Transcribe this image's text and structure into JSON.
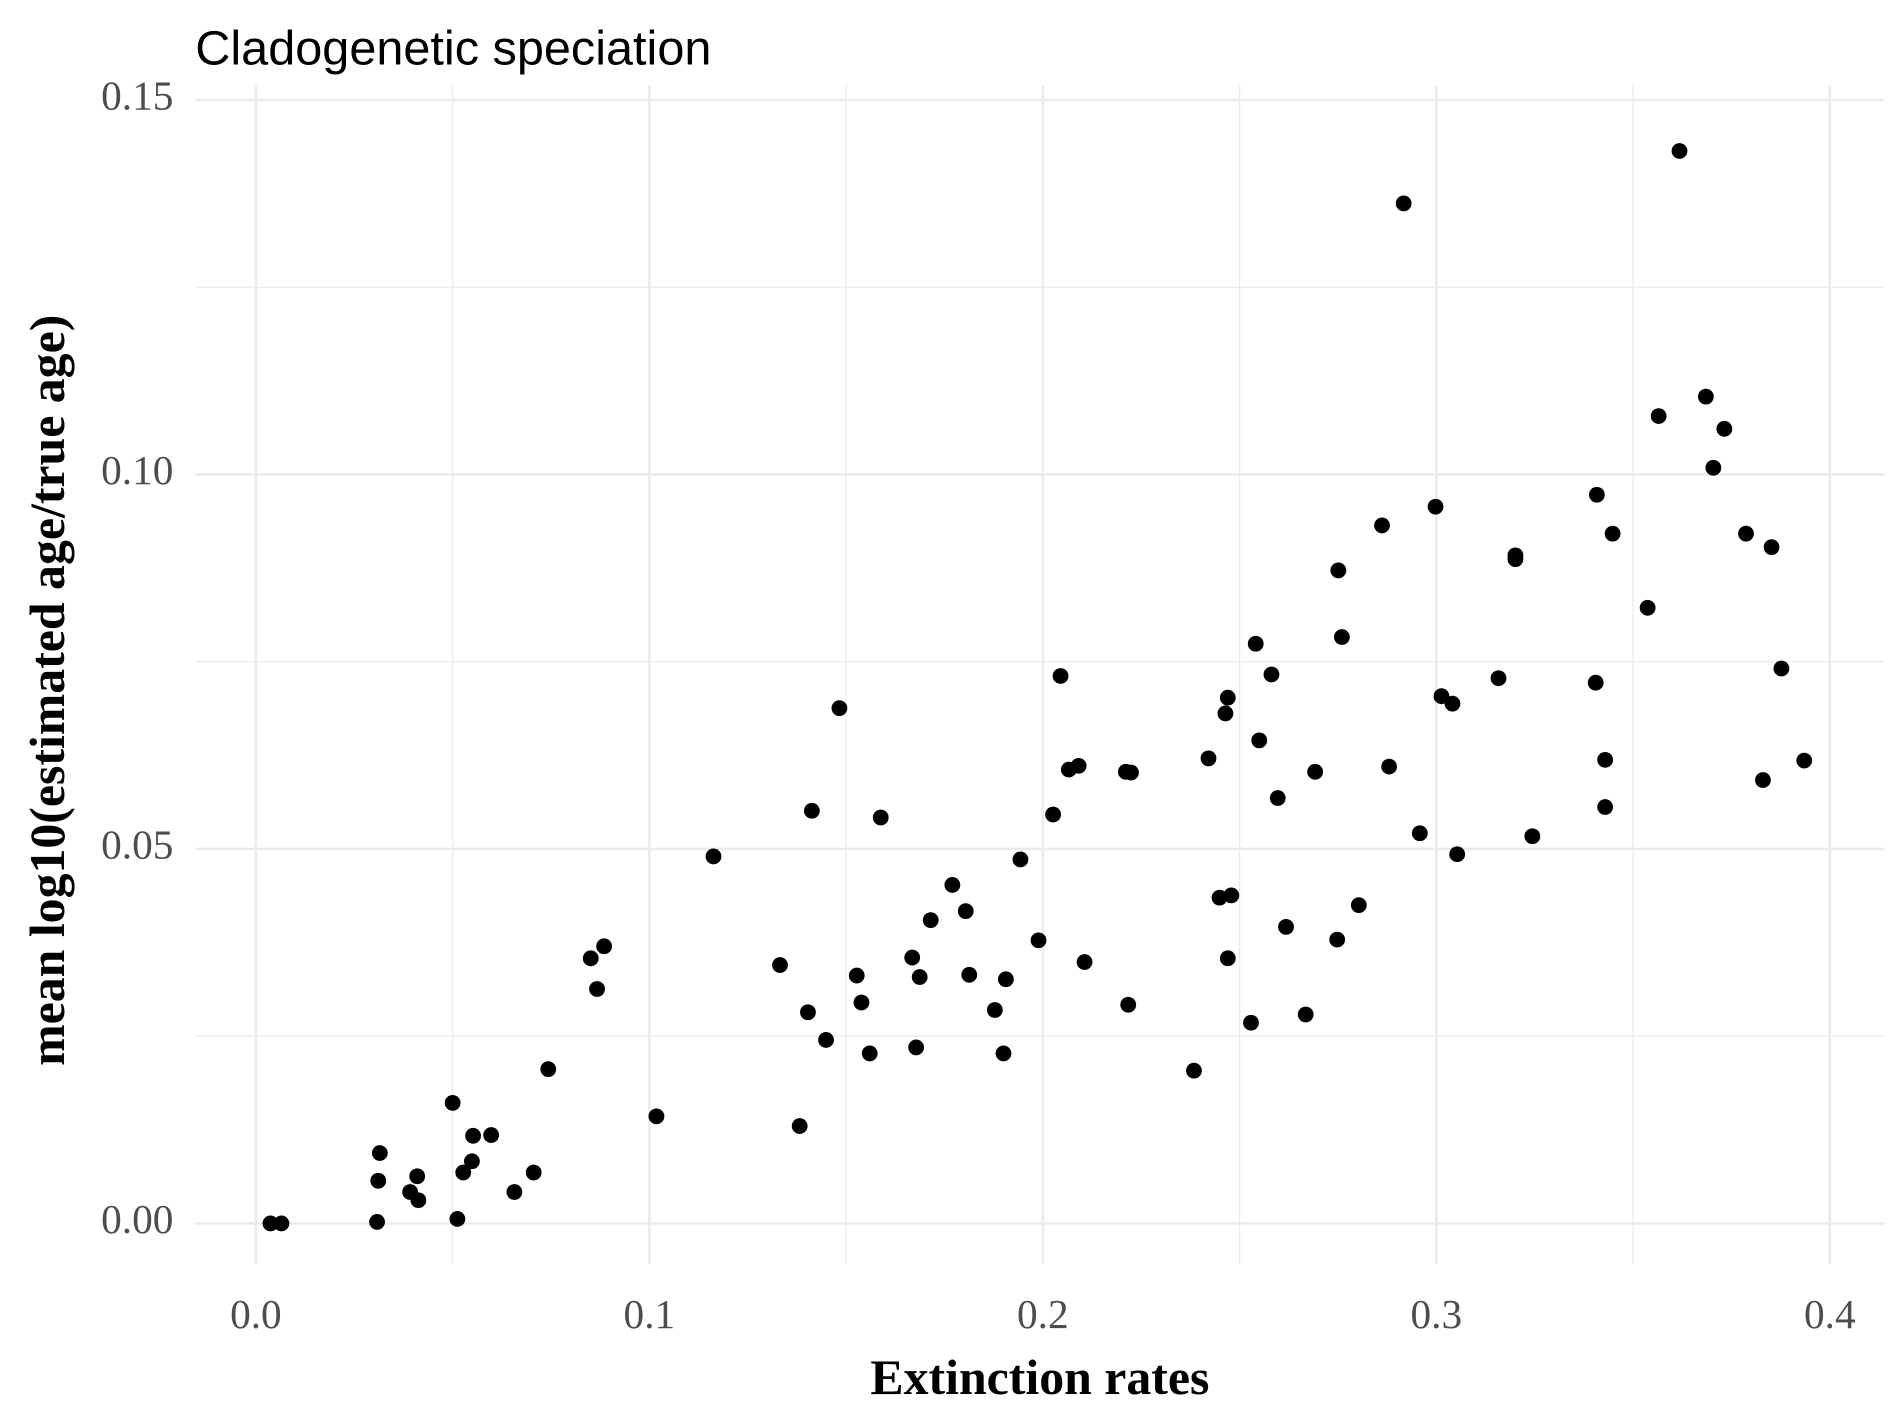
{
  "chart_data": {
    "type": "scatter",
    "title": "Cladogenetic speciation",
    "x_label": "Extinction rates",
    "y_label": "mean log10(estimated age/true age)",
    "color": "#000000",
    "grid": true,
    "xlim": [
      -0.0154,
      0.4139
    ],
    "ylim": [
      -0.0054,
      0.152
    ],
    "xticks": [
      {
        "value": 0,
        "label": "0.0"
      },
      {
        "value": 0.1,
        "label": "0.1"
      },
      {
        "value": 0.2,
        "label": "0.2"
      },
      {
        "value": 0.3,
        "label": "0.3"
      },
      {
        "value": 0.4,
        "label": "0.4"
      }
    ],
    "yticks": [
      {
        "value": 0,
        "label": "0.00"
      },
      {
        "value": 0.05,
        "label": "0.05"
      },
      {
        "value": 0.1,
        "label": "0.10"
      },
      {
        "value": 0.15,
        "label": "0.15"
      }
    ],
    "x": [
      0.0037,
      0.0065,
      0.0308,
      0.0315,
      0.0311,
      0.0392,
      0.041,
      0.0413,
      0.05,
      0.0512,
      0.0527,
      0.0549,
      0.0552,
      0.0598,
      0.0657,
      0.0706,
      0.0743,
      0.0851,
      0.0867,
      0.0885,
      0.1018,
      0.1163,
      0.1332,
      0.1382,
      0.1403,
      0.1413,
      0.1449,
      0.1483,
      0.1527,
      0.1539,
      0.156,
      0.1588,
      0.1668,
      0.1678,
      0.1687,
      0.1715,
      0.177,
      0.1804,
      0.1813,
      0.1878,
      0.19,
      0.1906,
      0.1943,
      0.1989,
      0.2026,
      0.2045,
      0.2066,
      0.2091,
      0.2106,
      0.2211,
      0.2217,
      0.2224,
      0.2384,
      0.2421,
      0.2449,
      0.2464,
      0.247,
      0.247,
      0.2479,
      0.2529,
      0.2541,
      0.255,
      0.2581,
      0.2597,
      0.2618,
      0.2668,
      0.2692,
      0.2748,
      0.2751,
      0.276,
      0.2803,
      0.2862,
      0.288,
      0.2917,
      0.2958,
      0.2998,
      0.3013,
      0.3041,
      0.3053,
      0.3158,
      0.3201,
      0.3201,
      0.3244,
      0.3405,
      0.3408,
      0.3429,
      0.3429,
      0.3448,
      0.3537,
      0.3565,
      0.3618,
      0.3685,
      0.3704,
      0.3732,
      0.3787,
      0.383,
      0.3852,
      0.3877,
      0.3935
    ],
    "values": [
      0,
      0,
      0.0002,
      0.0094,
      0.0057,
      0.0042,
      0.0063,
      0.0031,
      0.0161,
      0.0006,
      0.0068,
      0.0083,
      0.0117,
      0.0118,
      0.0042,
      0.0068,
      0.0206,
      0.0354,
      0.0313,
      0.037,
      0.0143,
      0.049,
      0.0345,
      0.013,
      0.0282,
      0.0551,
      0.0245,
      0.0688,
      0.0331,
      0.0295,
      0.0227,
      0.0542,
      0.0355,
      0.0235,
      0.0329,
      0.0405,
      0.0452,
      0.0417,
      0.0332,
      0.0285,
      0.0227,
      0.0326,
      0.0486,
      0.0378,
      0.0546,
      0.0731,
      0.0606,
      0.0611,
      0.0349,
      0.0603,
      0.0292,
      0.0602,
      0.0204,
      0.0621,
      0.0435,
      0.0681,
      0.0702,
      0.0354,
      0.0438,
      0.0268,
      0.0774,
      0.0645,
      0.0733,
      0.0568,
      0.0396,
      0.0279,
      0.0603,
      0.0379,
      0.0872,
      0.0783,
      0.0425,
      0.0932,
      0.061,
      0.1362,
      0.0521,
      0.0957,
      0.0704,
      0.0694,
      0.0493,
      0.0728,
      0.0892,
      0.0887,
      0.0517,
      0.0722,
      0.0973,
      0.0619,
      0.0556,
      0.0921,
      0.0822,
      0.1078,
      0.1432,
      0.1104,
      0.1009,
      0.1061,
      0.0921,
      0.0592,
      0.0903,
      0.0741,
      0.0618
    ]
  }
}
